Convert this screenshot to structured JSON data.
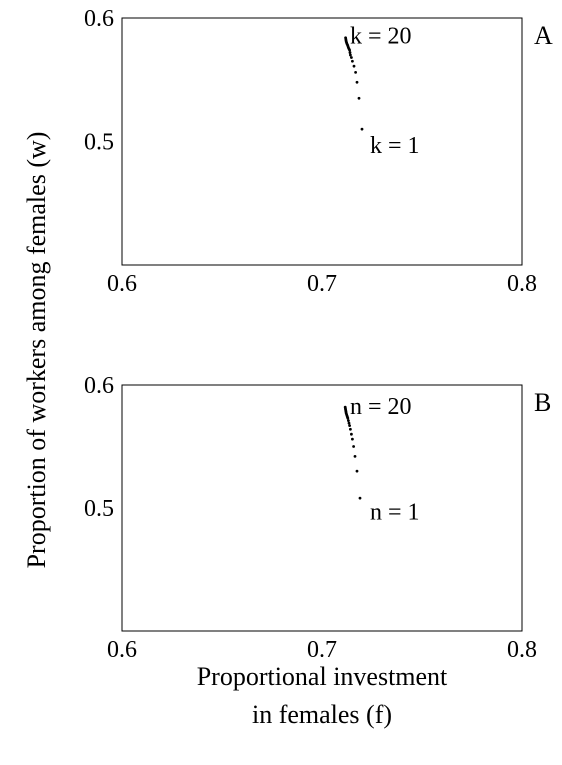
{
  "ylabel": "Proportion of workers among females (w)",
  "xlabel_lines": [
    "Proportional investment",
    "in females (f)"
  ],
  "chart_data": [
    {
      "type": "scatter",
      "panel_label": "A",
      "xlim": [
        0.6,
        0.8
      ],
      "ylim": [
        0.4,
        0.6
      ],
      "xticks": [
        "0.6",
        "0.7",
        "0.8"
      ],
      "yticks": [
        "0.6",
        "0.5"
      ],
      "ytick_values": [
        0.6,
        0.5
      ],
      "grid": false,
      "x": [
        0.72,
        0.7185,
        0.7175,
        0.7168,
        0.716,
        0.7152,
        0.7147,
        0.7142,
        0.714,
        0.7138,
        0.7135,
        0.7132,
        0.713,
        0.7128,
        0.7125,
        0.7123,
        0.7121,
        0.712,
        0.7119,
        0.7118
      ],
      "y": [
        0.51,
        0.535,
        0.548,
        0.556,
        0.561,
        0.565,
        0.568,
        0.57,
        0.572,
        0.574,
        0.575,
        0.576,
        0.577,
        0.578,
        0.579,
        0.58,
        0.581,
        0.582,
        0.583,
        0.584
      ],
      "annotations": [
        {
          "text": "k = 20",
          "x": 0.714,
          "y": 0.586
        },
        {
          "text": "k = 1",
          "x": 0.724,
          "y": 0.497
        }
      ]
    },
    {
      "type": "scatter",
      "panel_label": "B",
      "xlim": [
        0.6,
        0.8
      ],
      "ylim": [
        0.4,
        0.6
      ],
      "xticks": [
        "0.6",
        "0.7",
        "0.8"
      ],
      "yticks": [
        "0.6",
        "0.5"
      ],
      "ytick_values": [
        0.6,
        0.5
      ],
      "grid": false,
      "x": [
        0.719,
        0.7175,
        0.7165,
        0.7158,
        0.7152,
        0.7147,
        0.7142,
        0.7138,
        0.7135,
        0.7132,
        0.7129,
        0.7127,
        0.7125,
        0.7123,
        0.7121,
        0.712,
        0.7119,
        0.7118,
        0.7117,
        0.7116
      ],
      "y": [
        0.508,
        0.53,
        0.542,
        0.55,
        0.556,
        0.56,
        0.564,
        0.567,
        0.569,
        0.571,
        0.573,
        0.574,
        0.575,
        0.576,
        0.577,
        0.578,
        0.579,
        0.58,
        0.581,
        0.582
      ],
      "annotations": [
        {
          "text": "n = 20",
          "x": 0.714,
          "y": 0.583
        },
        {
          "text": "n = 1",
          "x": 0.724,
          "y": 0.497
        }
      ]
    }
  ]
}
